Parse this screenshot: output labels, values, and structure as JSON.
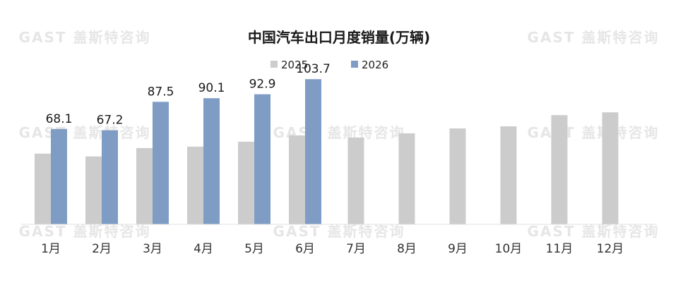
{
  "chart_data": {
    "type": "bar",
    "title": "中国汽车出口月度销量(万辆)",
    "categories": [
      "1月",
      "2月",
      "3月",
      "4月",
      "5月",
      "6月",
      "7月",
      "8月",
      "9月",
      "10月",
      "11月",
      "12月"
    ],
    "series": [
      {
        "name": "2025",
        "color": "#cccccc",
        "values": [
          50.5,
          48.5,
          54.5,
          55.5,
          59.0,
          63.5,
          62.0,
          65.0,
          68.5,
          70.0,
          78.0,
          80.0
        ],
        "show_labels": false
      },
      {
        "name": "2026",
        "color": "#7f9dc4",
        "values": [
          68.1,
          67.2,
          87.5,
          90.1,
          92.9,
          103.7,
          null,
          null,
          null,
          null,
          null,
          null
        ],
        "show_labels": true
      }
    ],
    "ylim": [
      0,
      130
    ],
    "grid": false,
    "legend_position": "top-center",
    "watermark": "GAST 盖斯特咨询"
  }
}
